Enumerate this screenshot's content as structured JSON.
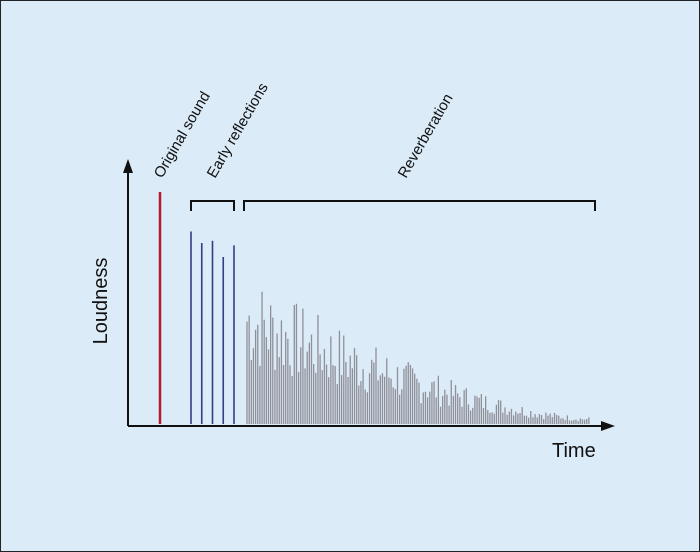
{
  "labels": {
    "original_sound": "Original sound",
    "early_reflections": "Early reflections",
    "reverberation": "Reverberation",
    "y_axis": "Loudness",
    "x_axis": "Time"
  },
  "colors": {
    "background": "#dcebf8",
    "axis": "#111111",
    "original": "#b01c2e",
    "early": "#2f3f86",
    "reverb": "#8f8f98"
  },
  "signal": {
    "original_level": 1.0,
    "early_reflection_levels": [
      0.83,
      0.78,
      0.79,
      0.72,
      0.77
    ],
    "reverberation_level_start": 0.66,
    "reverberation_level_end": 0.03
  }
}
